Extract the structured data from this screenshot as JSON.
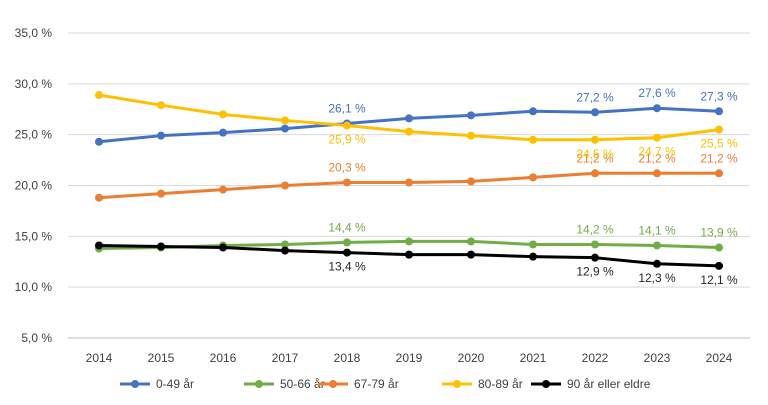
{
  "chart_data": {
    "type": "line",
    "title": "",
    "xlabel": "",
    "ylabel": "",
    "ylim": [
      5.0,
      35.0
    ],
    "yticks": [
      "5,0 %",
      "10,0 %",
      "15,0 %",
      "20,0 %",
      "25,0 %",
      "30,0 %",
      "35,0 %"
    ],
    "grid": true,
    "legend_position": "bottom",
    "x": [
      "2014",
      "2015",
      "2016",
      "2017",
      "2018",
      "2019",
      "2020",
      "2021",
      "2022",
      "2023",
      "2024"
    ],
    "series": [
      {
        "name": "0-49 år",
        "color": "#4472C4",
        "values": [
          24.3,
          24.9,
          25.2,
          25.6,
          26.1,
          26.6,
          26.9,
          27.3,
          27.2,
          27.6,
          27.3
        ],
        "labels": [
          {
            "index": 4,
            "text": "26,1 %"
          },
          {
            "index": 8,
            "text": "27,2 %"
          },
          {
            "index": 9,
            "text": "27,6 %"
          },
          {
            "index": 10,
            "text": "27,3 %"
          }
        ]
      },
      {
        "name": "50-66 år",
        "color": "#70AD47",
        "values": [
          13.8,
          13.9,
          14.1,
          14.2,
          14.4,
          14.5,
          14.5,
          14.2,
          14.2,
          14.1,
          13.9
        ],
        "labels": [
          {
            "index": 4,
            "text": "14,4 %"
          },
          {
            "index": 8,
            "text": "14,2 %"
          },
          {
            "index": 9,
            "text": "14,1 %"
          },
          {
            "index": 10,
            "text": "13,9 %"
          }
        ]
      },
      {
        "name": "67-79 år",
        "color": "#ED7D31",
        "values": [
          18.8,
          19.2,
          19.6,
          20.0,
          20.3,
          20.3,
          20.4,
          20.8,
          21.2,
          21.2,
          21.2
        ],
        "labels": [
          {
            "index": 4,
            "text": "20,3 %"
          },
          {
            "index": 8,
            "text": "21,2 %"
          },
          {
            "index": 9,
            "text": "21,2 %"
          },
          {
            "index": 10,
            "text": "21,2 %"
          }
        ]
      },
      {
        "name": "80-89 år",
        "color": "#FFC000",
        "values": [
          28.9,
          27.9,
          27.0,
          26.4,
          25.9,
          25.3,
          24.9,
          24.5,
          24.5,
          24.7,
          25.5
        ],
        "labels": [
          {
            "index": 4,
            "text": "25,9 %"
          },
          {
            "index": 8,
            "text": "24,5 %"
          },
          {
            "index": 9,
            "text": "24,7 %"
          },
          {
            "index": 10,
            "text": "25,5 %"
          }
        ]
      },
      {
        "name": "90 år eller eldre",
        "color": "#000000",
        "values": [
          14.1,
          14.0,
          13.9,
          13.6,
          13.4,
          13.2,
          13.2,
          13.0,
          12.9,
          12.3,
          12.1
        ],
        "labels": [
          {
            "index": 4,
            "text": "13,4 %"
          },
          {
            "index": 8,
            "text": "12,9 %"
          },
          {
            "index": 9,
            "text": "12,3 %"
          },
          {
            "index": 10,
            "text": "12,1 %"
          }
        ]
      }
    ]
  }
}
